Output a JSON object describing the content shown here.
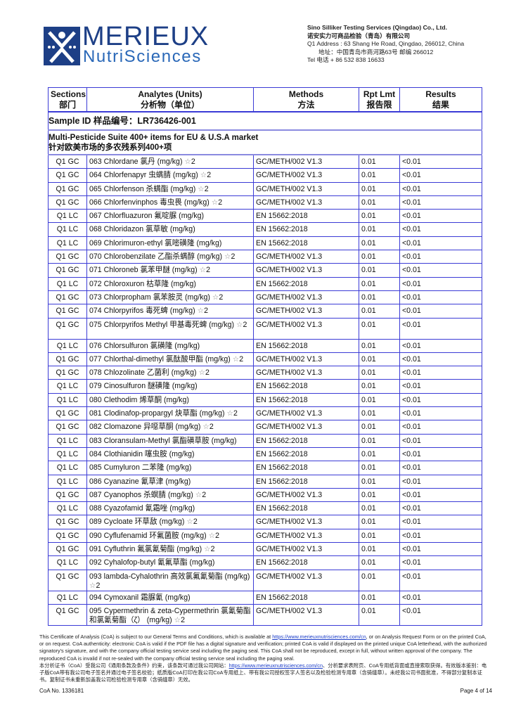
{
  "logo": {
    "main": "MERIEUX",
    "sub": "NutriSciences"
  },
  "company": {
    "name_en": "Sino Silliker Testing Services (Qingdao) Co., Ltd.",
    "name_cn": "诺安实力可商品检验（青岛）有限公司",
    "address_en": "Q1  Address : 63 Shang He Road, Qingdao, 266012, China",
    "address_cn": "地址：中国青岛市商河路63号 邮编 266012",
    "tel": "Tel 电话 + 86 532 838 16633"
  },
  "table": {
    "headers": [
      {
        "en": "Sections",
        "cn": "部门"
      },
      {
        "en": "Analytes (Units)",
        "cn": "分析物（单位）"
      },
      {
        "en": "Methods",
        "cn": "方法"
      },
      {
        "en": "Rpt Lmt",
        "cn": "报告限"
      },
      {
        "en": "Results",
        "cn": "结果"
      }
    ],
    "sample_id": "Sample ID 样品编号：LR736426-001",
    "suite_en": "Multi-Pesticide Suite 400+ items for EU & U.S.A market",
    "suite_cn": "针对欧美市场的多农残系列400+项",
    "rows": [
      {
        "section": "Q1 GC",
        "analyte": "063 Chlordane 氯丹 (mg/kg) ☆2",
        "method": "GC/METH/002 V1.3",
        "rpt": "0.01",
        "result": "<0.01"
      },
      {
        "section": "Q1 GC",
        "analyte": "064 Chlorfenapyr 虫螨腈 (mg/kg) ☆2",
        "method": "GC/METH/002 V1.3",
        "rpt": "0.01",
        "result": "<0.01"
      },
      {
        "section": "Q1 GC",
        "analyte": "065 Chlorfenson 杀螨酯 (mg/kg) ☆2",
        "method": "GC/METH/002 V1.3",
        "rpt": "0.01",
        "result": "<0.01"
      },
      {
        "section": "Q1 GC",
        "analyte": "066 Chlorfenvinphos 毒虫畏 (mg/kg) ☆2",
        "method": "GC/METH/002 V1.3",
        "rpt": "0.01",
        "result": "<0.01"
      },
      {
        "section": "Q1 LC",
        "analyte": "067 Chlorfluazuron 氟啶脲 (mg/kg)",
        "method": "EN 15662:2018",
        "rpt": "0.01",
        "result": "<0.01"
      },
      {
        "section": "Q1 LC",
        "analyte": "068 Chloridazon 氯草敏 (mg/kg)",
        "method": "EN 15662:2018",
        "rpt": "0.01",
        "result": "<0.01"
      },
      {
        "section": "Q1 LC",
        "analyte": "069 Chlorimuron-ethyl 氯嘧磺隆 (mg/kg)",
        "method": "EN 15662:2018",
        "rpt": "0.01",
        "result": "<0.01"
      },
      {
        "section": "Q1 GC",
        "analyte": "070 Chlorobenzilate 乙酯杀螨醇 (mg/kg) ☆2",
        "method": "GC/METH/002 V1.3",
        "rpt": "0.01",
        "result": "<0.01"
      },
      {
        "section": "Q1 GC",
        "analyte": "071 Chloroneb 氯苯甲醚 (mg/kg) ☆2",
        "method": "GC/METH/002 V1.3",
        "rpt": "0.01",
        "result": "<0.01"
      },
      {
        "section": "Q1 LC",
        "analyte": "072 Chloroxuron 枯草隆 (mg/kg)",
        "method": "EN 15662:2018",
        "rpt": "0.01",
        "result": "<0.01"
      },
      {
        "section": "Q1 GC",
        "analyte": "073 Chlorpropham 氯苯胺灵 (mg/kg) ☆2",
        "method": "GC/METH/002 V1.3",
        "rpt": "0.01",
        "result": "<0.01"
      },
      {
        "section": "Q1 GC",
        "analyte": "074 Chlorpyrifos 毒死蜱 (mg/kg) ☆2",
        "method": "GC/METH/002 V1.3",
        "rpt": "0.01",
        "result": "<0.01"
      },
      {
        "section": "Q1 GC",
        "analyte": "075 Chlorpyrifos Methyl 甲基毒死蜱 (mg/kg) ☆2",
        "method": "GC/METH/002 V1.3",
        "rpt": "0.01",
        "result": "<0.01",
        "two": true
      },
      {
        "section": "Q1 LC",
        "analyte": "076 Chlorsulfuron 氯磺隆 (mg/kg)",
        "method": "EN 15662:2018",
        "rpt": "0.01",
        "result": "<0.01"
      },
      {
        "section": "Q1 GC",
        "analyte": "077 Chlorthal-dimethyl 氯酞酸甲酯 (mg/kg) ☆2",
        "method": "GC/METH/002 V1.3",
        "rpt": "0.01",
        "result": "<0.01"
      },
      {
        "section": "Q1 GC",
        "analyte": "078 Chlozolinate 乙菌利 (mg/kg) ☆2",
        "method": "GC/METH/002 V1.3",
        "rpt": "0.01",
        "result": "<0.01"
      },
      {
        "section": "Q1 LC",
        "analyte": "079 Cinosulfuron 醚磺隆 (mg/kg)",
        "method": "EN 15662:2018",
        "rpt": "0.01",
        "result": "<0.01"
      },
      {
        "section": "Q1 LC",
        "analyte": "080 Clethodim 烯草酮 (mg/kg)",
        "method": "EN 15662:2018",
        "rpt": "0.01",
        "result": "<0.01"
      },
      {
        "section": "Q1 GC",
        "analyte": "081 Clodinafop-propargyl 炔草酯 (mg/kg) ☆2",
        "method": "GC/METH/002 V1.3",
        "rpt": "0.01",
        "result": "<0.01"
      },
      {
        "section": "Q1 GC",
        "analyte": "082 Clomazone 异噁草酮 (mg/kg) ☆2",
        "method": "GC/METH/002 V1.3",
        "rpt": "0.01",
        "result": "<0.01"
      },
      {
        "section": "Q1 LC",
        "analyte": "083 Cloransulam-Methyl 氯酯磺草胺 (mg/kg)",
        "method": "EN 15662:2018",
        "rpt": "0.01",
        "result": "<0.01"
      },
      {
        "section": "Q1 LC",
        "analyte": "084 Clothianidin 噻虫胺 (mg/kg)",
        "method": "EN 15662:2018",
        "rpt": "0.01",
        "result": "<0.01"
      },
      {
        "section": "Q1 LC",
        "analyte": "085 Cumyluron 二苯隆 (mg/kg)",
        "method": "EN 15662:2018",
        "rpt": "0.01",
        "result": "<0.01"
      },
      {
        "section": "Q1 LC",
        "analyte": "086 Cyanazine 氰草津 (mg/kg)",
        "method": "EN 15662:2018",
        "rpt": "0.01",
        "result": "<0.01"
      },
      {
        "section": "Q1 GC",
        "analyte": "087 Cyanophos 杀螟腈 (mg/kg) ☆2",
        "method": "GC/METH/002 V1.3",
        "rpt": "0.01",
        "result": "<0.01"
      },
      {
        "section": "Q1 LC",
        "analyte": "088 Cyazofamid 氰霜唑 (mg/kg)",
        "method": "EN 15662:2018",
        "rpt": "0.01",
        "result": "<0.01"
      },
      {
        "section": "Q1 GC",
        "analyte": "089 Cycloate 环草敌 (mg/kg) ☆2",
        "method": "GC/METH/002 V1.3",
        "rpt": "0.01",
        "result": "<0.01"
      },
      {
        "section": "Q1 GC",
        "analyte": "090 Cyflufenamid 环氟菌胺 (mg/kg) ☆2",
        "method": "GC/METH/002 V1.3",
        "rpt": "0.01",
        "result": "<0.01"
      },
      {
        "section": "Q1 GC",
        "analyte": "091 Cyfluthrin 氟氯氰菊酯 (mg/kg) ☆2",
        "method": "GC/METH/002 V1.3",
        "rpt": "0.01",
        "result": "<0.01"
      },
      {
        "section": "Q1 LC",
        "analyte": "092 Cyhalofop-butyl 氰氟草酯 (mg/kg)",
        "method": "EN 15662:2018",
        "rpt": "0.01",
        "result": "<0.01"
      },
      {
        "section": "Q1 GC",
        "analyte": "093 lambda-Cyhalothrin 高效氯氟氰菊酯 (mg/kg) ☆2",
        "method": "GC/METH/002 V1.3",
        "rpt": "0.01",
        "result": "<0.01",
        "two": true
      },
      {
        "section": "Q1 LC",
        "analyte": "094 Cymoxanil 霜脲氰 (mg/kg)",
        "method": "EN 15662:2018",
        "rpt": "0.01",
        "result": "<0.01"
      },
      {
        "section": "Q1 GC",
        "analyte": "095 Cypermethrin & zeta-Cypermethrin 氯氰菊酯和氯氰菊酯（ζ） (mg/kg) ☆2",
        "method": "GC/METH/002 V1.3",
        "rpt": "0.01",
        "result": "<0.01",
        "two": true
      }
    ]
  },
  "footer": {
    "en_1": "This Certificate of Analysis (CoA) is subject to our General Terms and Conditions, which is available at ",
    "link": "https://www.merieuxnutrisciences.com/cn",
    "en_2": ", or on Analysis Request Form or on the printed CoA, or on request. CoA authenticity: electronic CoA is valid if the PDF file has a digital signature and verification; printed CoA is valid if displayed on the printed unique CoA letterhead, with the authorized signatory's signature, and with the company official testing service seal including the paging seal. This CoA shall not be reproduced, except in full, without written approval of the company. The reproduced CoA is invalid if not re-sealed with the company official testing service seal including the paging seal.",
    "cn_1": "本分析证书（CoA）受我公司《通用条款及条件》约束，该条款可通过我公司网站：",
    "cn_2": "、分析要求表附页、CoA专用纸背面或直接索取获得。有效版本鉴别：电子版CoA带有我公司电子签名并通过电子签名校验；纸质版CoA打印在我公司CoA专用纸上、带有我公司授权签字人签名以及检验检测专用章（含骑缝章）。未经我公司书面批准，不得部分复制本证书。复制证书未重新加盖我公司检验检测专用章（含骑缝章）无效。",
    "coa_no": "CoA No. 1336181",
    "page": "Page 4 of 14"
  }
}
